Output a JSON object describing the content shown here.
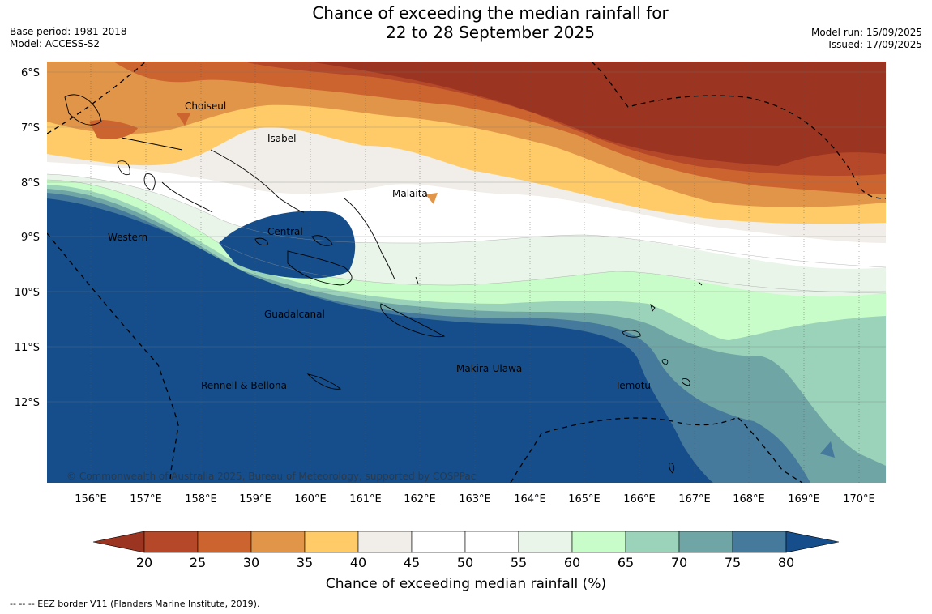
{
  "title": {
    "line1": "Chance of exceeding the median rainfall for",
    "line2": "22 to 28 September 2025"
  },
  "meta_left": {
    "base_period": "Base period: 1981-2018",
    "model": "Model: ACCESS-S2"
  },
  "meta_right": {
    "model_run": "Model run: 15/09/2025",
    "issued": "Issued: 17/09/2025"
  },
  "map": {
    "copyright": "© Commonwealth of Australia 2025, Bureau of Meteorology, supported by COSPPac",
    "lat_ticks": [
      "6°S",
      "7°S",
      "8°S",
      "9°S",
      "10°S",
      "11°S",
      "12°S"
    ],
    "lon_ticks": [
      "156°E",
      "157°E",
      "158°E",
      "159°E",
      "160°E",
      "161°E",
      "162°E",
      "163°E",
      "164°E",
      "165°E",
      "166°E",
      "167°E",
      "168°E",
      "169°E",
      "170°E"
    ],
    "province_labels": [
      "Choiseul",
      "Isabel",
      "Malaita",
      "Western",
      "Central",
      "Guadalcanal",
      "Rennell & Bellona",
      "Makira-Ulawa",
      "Temotu"
    ]
  },
  "colorbar": {
    "label": "Chance of exceeding median rainfall (%)",
    "ticks": [
      "20",
      "25",
      "30",
      "35",
      "40",
      "45",
      "50",
      "55",
      "60",
      "65",
      "70",
      "75",
      "80"
    ],
    "colors": [
      "#9b3420",
      "#b54828",
      "#cc6430",
      "#e19548",
      "#fecb68",
      "#f1ede8",
      "#ffffff",
      "#ffffff",
      "#e9f5e9",
      "#c8fcc8",
      "#9bd2ba",
      "#6fa5a5",
      "#457a9c",
      "#154e8b"
    ]
  },
  "footer": "--  --  -- EEZ border V11 (Flanders Marine Institute, 2019)."
}
